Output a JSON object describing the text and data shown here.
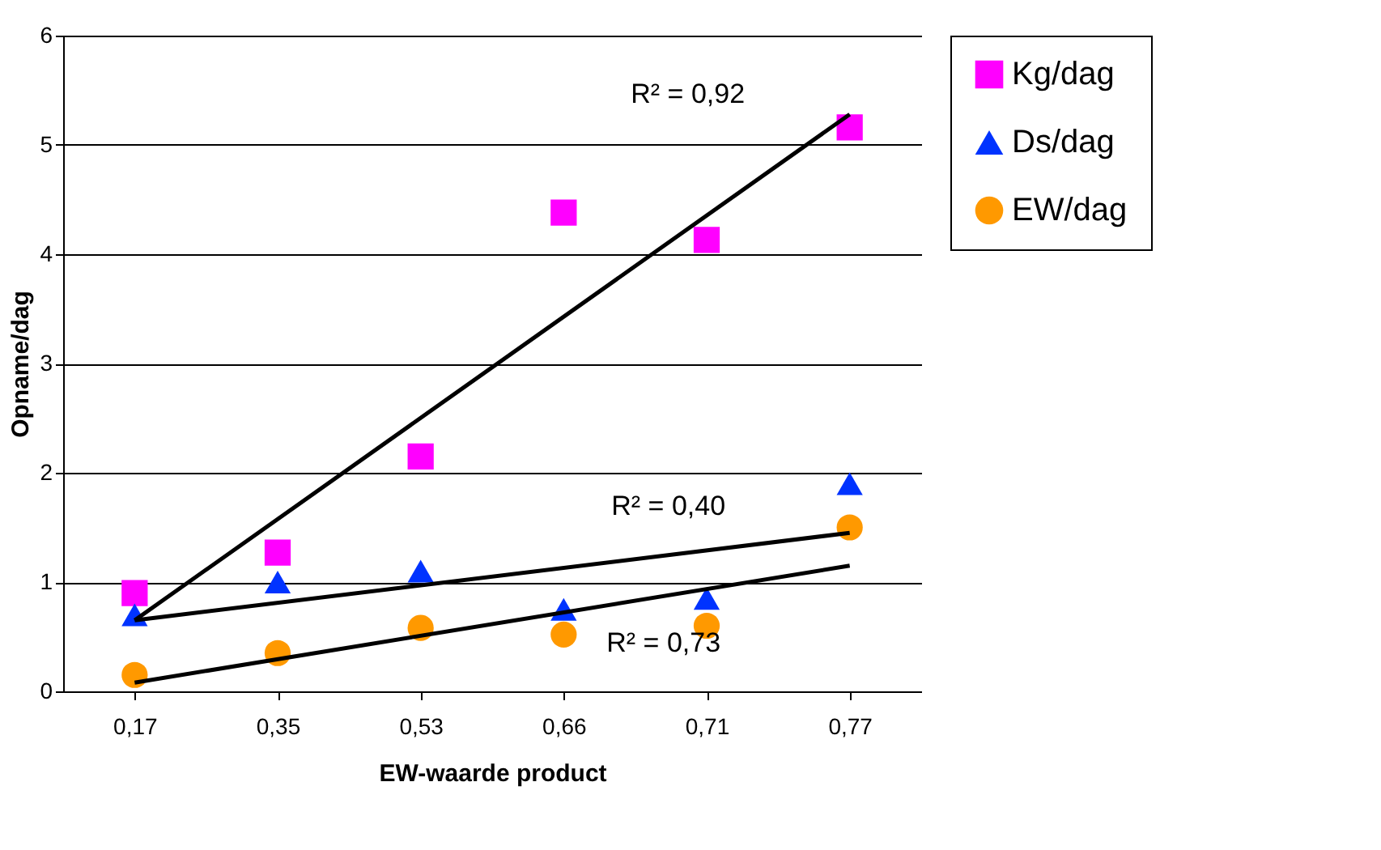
{
  "chart_data": {
    "type": "scatter",
    "xlabel": "EW-waarde product",
    "ylabel": "Opname/dag",
    "categories": [
      "0,17",
      "0,35",
      "0,53",
      "0,66",
      "0,71",
      "0,77"
    ],
    "series": [
      {
        "name": "Kg/dag",
        "color": "#ff00ff",
        "marker": "square",
        "values": [
          0.9,
          1.27,
          2.15,
          4.38,
          4.13,
          5.16
        ]
      },
      {
        "name": "Ds/dag",
        "color": "#0033ff",
        "marker": "triangle",
        "values": [
          0.7,
          1.0,
          1.1,
          0.75,
          0.85,
          1.9
        ]
      },
      {
        "name": "EW/dag",
        "color": "#ff9900",
        "marker": "circle",
        "values": [
          0.15,
          0.35,
          0.58,
          0.52,
          0.6,
          1.5
        ]
      },
      {
        "type": "line",
        "color": "#000000",
        "marker": "none",
        "x": [
          "0,17",
          "0,77"
        ],
        "values": [
          0.65,
          5.28
        ]
      },
      {
        "type": "line",
        "color": "#000000",
        "marker": "none",
        "x": [
          "0,17",
          "0,77"
        ],
        "values": [
          0.65,
          1.45
        ]
      },
      {
        "type": "line",
        "color": "#000000",
        "marker": "none",
        "x": [
          "0,17",
          "0,77"
        ],
        "values": [
          0.08,
          1.15
        ]
      }
    ],
    "annotations": [
      "R² = 0,92",
      "R² = 0,40",
      "R² = 0,73"
    ],
    "ylim": [
      0,
      6
    ],
    "yticks": [
      0,
      1,
      2,
      3,
      4,
      5,
      6
    ],
    "grid": "y",
    "legend": "right"
  }
}
